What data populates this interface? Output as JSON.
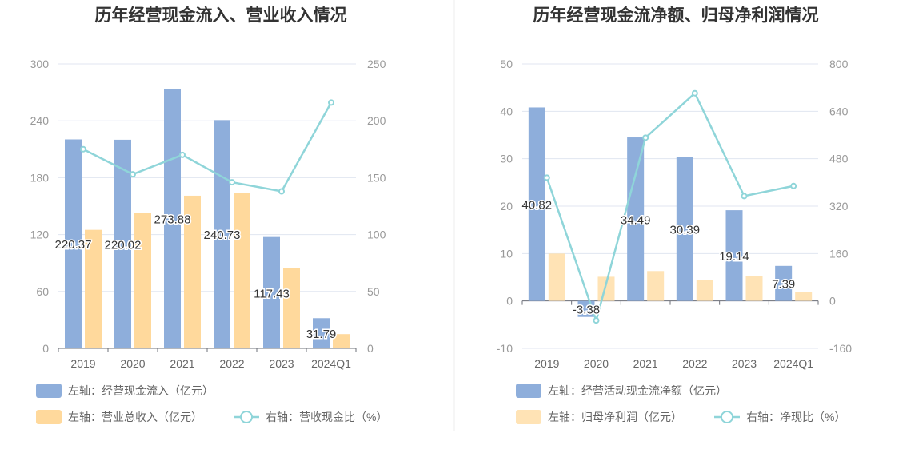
{
  "chart_data": [
    {
      "type": "bar",
      "title": "历年经营现金流入、营业收入情况",
      "categories": [
        "2019",
        "2020",
        "2021",
        "2022",
        "2023",
        "2024Q1"
      ],
      "left_axis": {
        "ticks": [
          "0",
          "60",
          "120",
          "180",
          "240",
          "300"
        ],
        "ylim": [
          0,
          300
        ]
      },
      "right_axis": {
        "ticks": [
          "0",
          "50",
          "100",
          "150",
          "200",
          "250"
        ],
        "ylim": [
          0,
          250
        ]
      },
      "series": [
        {
          "name": "左轴：经营现金流入（亿元）",
          "kind": "bar",
          "axis": "left",
          "color": "#8eaedb",
          "values": [
            220.37,
            220.02,
            273.88,
            240.73,
            117.43,
            31.79
          ],
          "labels": [
            "220.37",
            "220.02",
            "273.88",
            "240.73",
            "117.43",
            "31.79"
          ]
        },
        {
          "name": "左轴：营业总收入（亿元）",
          "kind": "bar",
          "axis": "left",
          "color": "#ffd99c",
          "values": [
            125,
            143,
            161,
            164,
            85,
            15
          ]
        },
        {
          "name": "右轴：营收现金比（%）",
          "kind": "line",
          "axis": "right",
          "color": "#8fd5d9",
          "values": [
            175,
            153,
            170,
            146,
            138,
            216
          ]
        }
      ]
    },
    {
      "type": "bar",
      "title": "历年经营现金流净额、归母净利润情况",
      "categories": [
        "2019",
        "2020",
        "2021",
        "2022",
        "2023",
        "2024Q1"
      ],
      "left_axis": {
        "ticks": [
          "-10",
          "0",
          "10",
          "20",
          "30",
          "40",
          "50"
        ],
        "ylim": [
          -10,
          50
        ]
      },
      "right_axis": {
        "ticks": [
          "-160",
          "0",
          "160",
          "320",
          "480",
          "640",
          "800"
        ],
        "ylim": [
          -160,
          800
        ]
      },
      "series": [
        {
          "name": "左轴：经营活动现金流净额（亿元）",
          "kind": "bar",
          "axis": "left",
          "color": "#8eaedb",
          "values": [
            40.82,
            -3.38,
            34.49,
            30.39,
            19.14,
            7.39
          ],
          "labels": [
            "40.82",
            "-3.38",
            "34.49",
            "30.39",
            "19.14",
            "7.39"
          ]
        },
        {
          "name": "左轴：归母净利润（亿元）",
          "kind": "bar",
          "axis": "left",
          "color": "#ffe3b5",
          "values": [
            10,
            5.1,
            6.3,
            4.4,
            5.3,
            1.8
          ]
        },
        {
          "name": "右轴：净现比（%）",
          "kind": "line",
          "axis": "right",
          "color": "#8fd5d9",
          "values": [
            416,
            -66,
            551,
            701,
            354,
            388
          ]
        }
      ]
    }
  ]
}
